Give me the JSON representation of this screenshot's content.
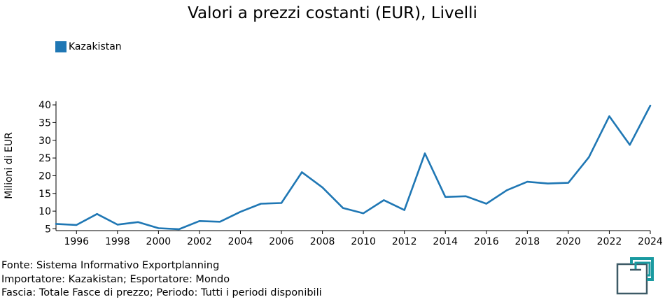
{
  "chart_data": {
    "type": "line",
    "title": "Valori a prezzi costanti (EUR), Livelli",
    "ylabel": "Milioni di EUR",
    "xlabel": "",
    "xlim": [
      1995,
      2024
    ],
    "ylim": [
      4.5,
      41
    ],
    "x_ticks": [
      1996,
      1998,
      2000,
      2002,
      2004,
      2006,
      2008,
      2010,
      2012,
      2014,
      2016,
      2018,
      2020,
      2022,
      2024
    ],
    "y_ticks": [
      5,
      10,
      15,
      20,
      25,
      30,
      35,
      40
    ],
    "legend_position": "top-left",
    "series": [
      {
        "name": "Kazakistan",
        "color": "#1f77b4",
        "x": [
          1995,
          1996,
          1997,
          1998,
          1999,
          2000,
          2001,
          2002,
          2003,
          2004,
          2005,
          2006,
          2007,
          2008,
          2009,
          2010,
          2011,
          2012,
          2013,
          2014,
          2015,
          2016,
          2017,
          2018,
          2019,
          2020,
          2021,
          2022,
          2023,
          2024
        ],
        "values": [
          6.4,
          6.1,
          9.2,
          6.2,
          6.9,
          5.2,
          4.9,
          7.2,
          7.0,
          9.8,
          12.1,
          12.3,
          21.0,
          16.7,
          10.9,
          9.4,
          13.1,
          10.3,
          26.3,
          14.0,
          14.2,
          12.1,
          15.9,
          18.3,
          17.8,
          18.0,
          25.2,
          36.8,
          28.7,
          39.8
        ]
      }
    ]
  },
  "footer": {
    "source": "Fonte: Sistema Informativo Exportplanning",
    "importer": "Importatore: Kazakistan; Esportatore: Mondo",
    "range": "Fascia: Totale Fasce di prezzo; Periodo: Tutti i periodi disponibili"
  },
  "logo": {
    "icon": "exportplanning-logo-icon",
    "colors": [
      "#1a9aa0",
      "#3d5a66"
    ]
  }
}
